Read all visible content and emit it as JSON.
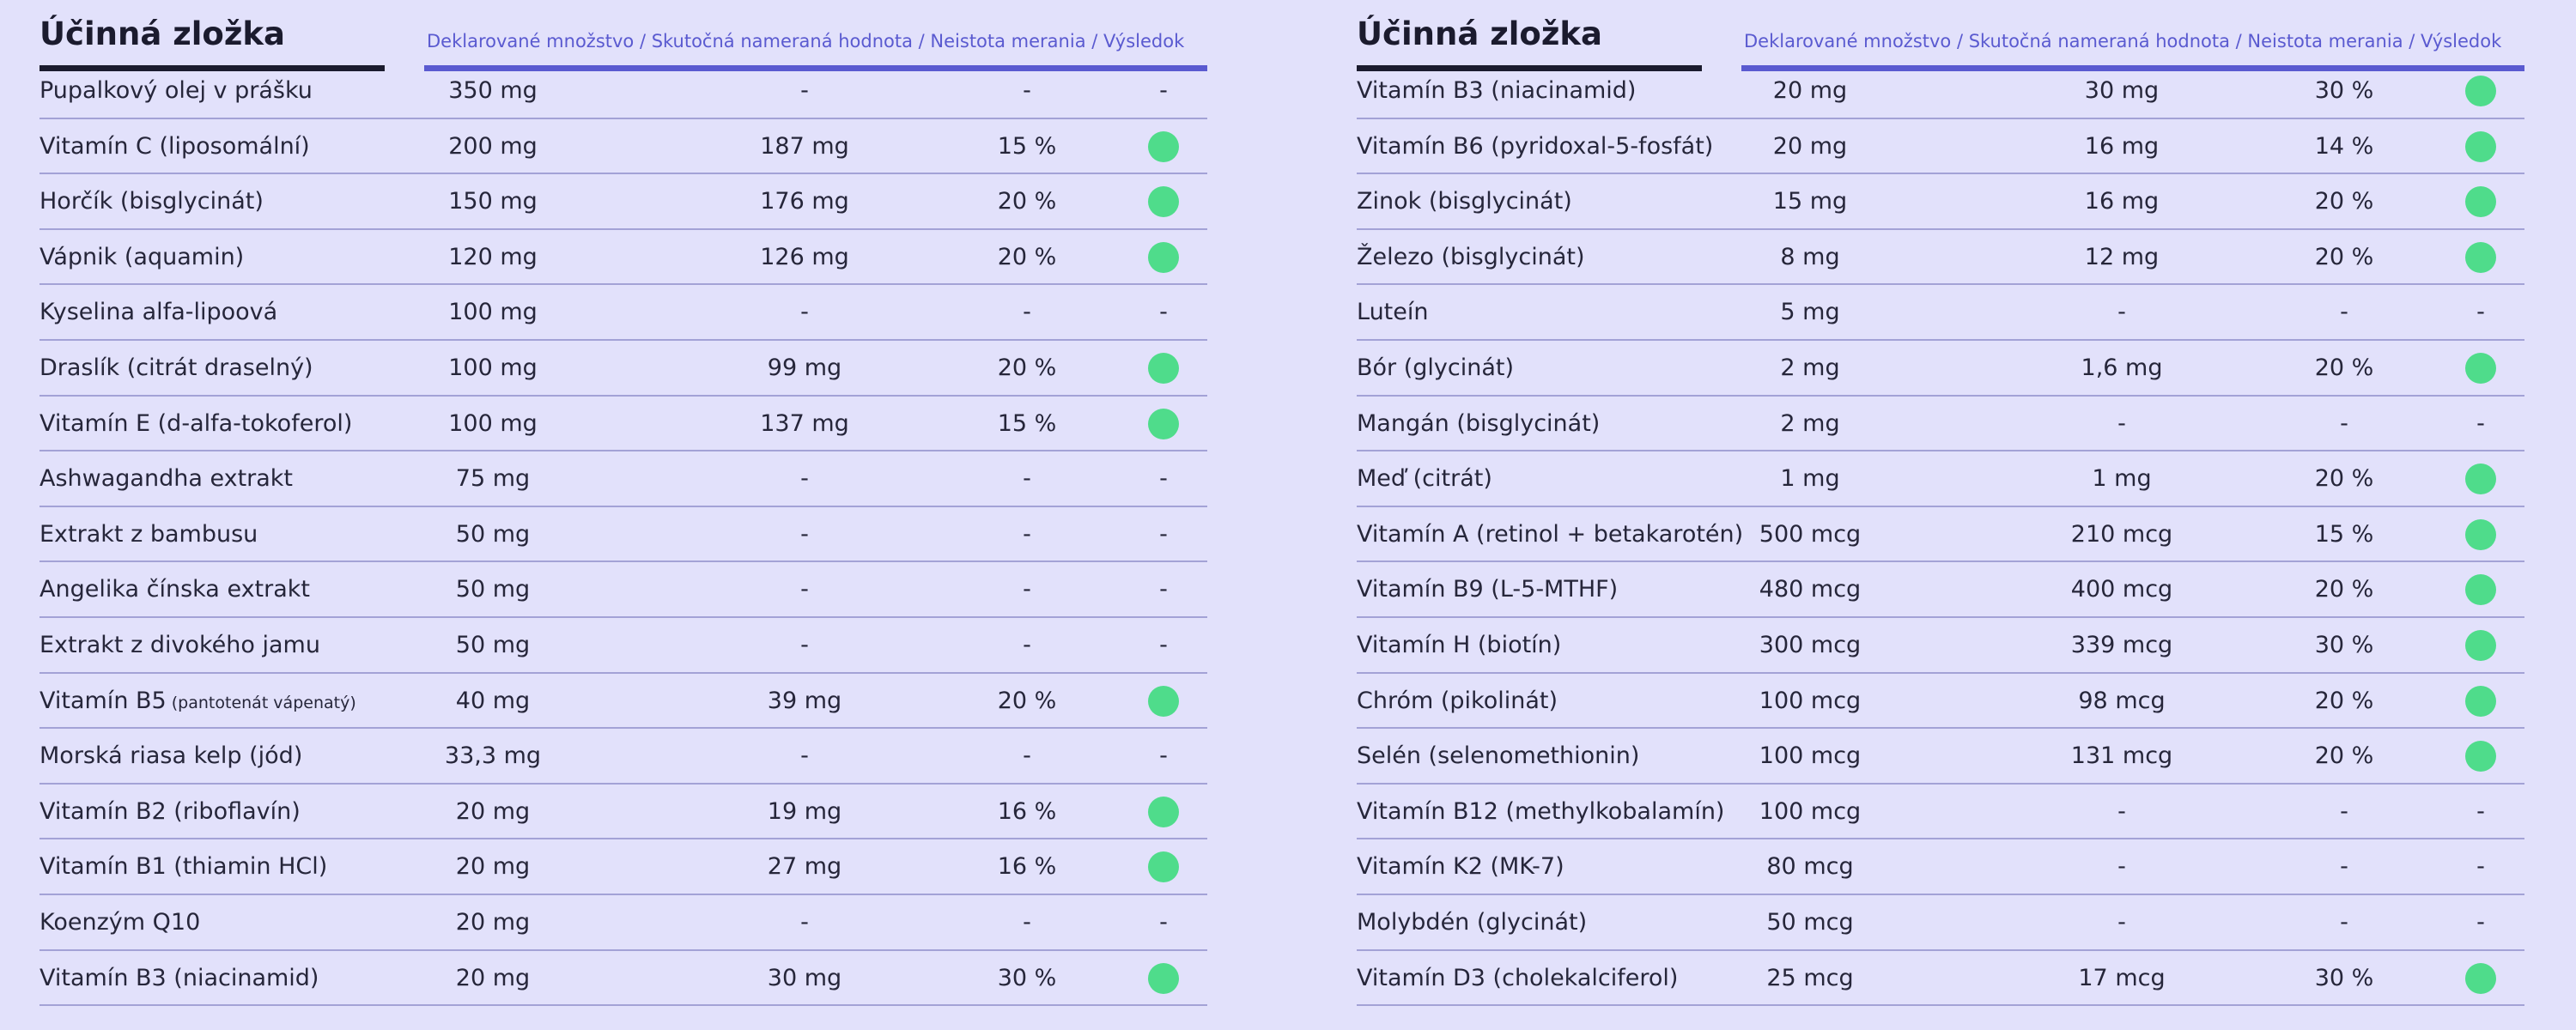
{
  "tables": [
    {
      "title": "Účinná zložka",
      "header": "Deklarované množstvo / Skutočná nameraná hodnota / Neistota merania / Výsledok",
      "rows": [
        {
          "name": "Pupalkový olej v prášku",
          "declared": "350 mg",
          "measured": "-",
          "uncertainty": "-",
          "result": "-"
        },
        {
          "name": "Vitamín C (liposomální)",
          "declared": "200 mg",
          "measured": "187 mg",
          "uncertainty": "15 %",
          "result": true
        },
        {
          "name": "Horčík (bisglycinát)",
          "declared": "150 mg",
          "measured": "176 mg",
          "uncertainty": "20 %",
          "result": true
        },
        {
          "name": "Vápnik (aquamin)",
          "declared": "120 mg",
          "measured": "126 mg",
          "uncertainty": "20 %",
          "result": true
        },
        {
          "name": "Kyselina alfa-lipoová",
          "declared": "100 mg",
          "measured": "-",
          "uncertainty": "-",
          "result": "-"
        },
        {
          "name": "Draslík (citrát draselný)",
          "declared": "100 mg",
          "measured": "99 mg",
          "uncertainty": "20 %",
          "result": true
        },
        {
          "name": "Vitamín E (d-alfa-tokoferol)",
          "declared": "100 mg",
          "measured": "137 mg",
          "uncertainty": "15 %",
          "result": true
        },
        {
          "name": "Ashwagandha extrakt",
          "declared": "75 mg",
          "measured": "-",
          "uncertainty": "-",
          "result": "-"
        },
        {
          "name": "Extrakt z bambusu",
          "declared": "50 mg",
          "measured": "-",
          "uncertainty": "-",
          "result": "-"
        },
        {
          "name": "Angelika čínska extrakt",
          "declared": "50 mg",
          "measured": "-",
          "uncertainty": "-",
          "result": "-"
        },
        {
          "name": "Extrakt z divokého jamu",
          "declared": "50 mg",
          "measured": "-",
          "uncertainty": "-",
          "result": "-"
        },
        {
          "name": "Vitamín B5",
          "note": "(pantotenát vápenatý)",
          "declared": "40 mg",
          "measured": "39 mg",
          "uncertainty": "20 %",
          "result": true
        },
        {
          "name": "Morská riasa kelp (jód)",
          "declared": "33,3 mg",
          "measured": "-",
          "uncertainty": "-",
          "result": "-"
        },
        {
          "name": "Vitamín B2 (riboflavín)",
          "declared": "20 mg",
          "measured": "19 mg",
          "uncertainty": "16 %",
          "result": true
        },
        {
          "name": "Vitamín B1 (thiamin HCl)",
          "declared": "20 mg",
          "measured": "27 mg",
          "uncertainty": "16 %",
          "result": true
        },
        {
          "name": "Koenzým Q10",
          "declared": "20 mg",
          "measured": "-",
          "uncertainty": "-",
          "result": "-"
        },
        {
          "name": "Vitamín B3 (niacinamid)",
          "declared": "20 mg",
          "measured": "30 mg",
          "uncertainty": "30 %",
          "result": true
        }
      ]
    },
    {
      "title": "Účinná zložka",
      "header": "Deklarované množstvo / Skutočná nameraná hodnota / Neistota merania / Výsledok",
      "rows": [
        {
          "name": "Vitamín B3 (niacinamid)",
          "declared": "20 mg",
          "measured": "30 mg",
          "uncertainty": "30 %",
          "result": true
        },
        {
          "name": "Vitamín B6 (pyridoxal-5-fosfát)",
          "declared": "20 mg",
          "measured": "16 mg",
          "uncertainty": "14 %",
          "result": true
        },
        {
          "name": "Zinok (bisglycinát)",
          "declared": "15 mg",
          "measured": "16 mg",
          "uncertainty": "20 %",
          "result": true
        },
        {
          "name": "Železo (bisglycinát)",
          "declared": "8 mg",
          "measured": "12 mg",
          "uncertainty": "20 %",
          "result": true
        },
        {
          "name": "Luteín",
          "declared": "5 mg",
          "measured": "-",
          "uncertainty": "-",
          "result": "-"
        },
        {
          "name": "Bór (glycinát)",
          "declared": "2 mg",
          "measured": "1,6 mg",
          "uncertainty": "20 %",
          "result": true
        },
        {
          "name": "Mangán (bisglycinát)",
          "declared": "2 mg",
          "measured": "-",
          "uncertainty": "-",
          "result": "-"
        },
        {
          "name": "Meď (citrát)",
          "declared": "1 mg",
          "measured": "1 mg",
          "uncertainty": "20 %",
          "result": true
        },
        {
          "name": "Vitamín A (retinol + betakarotén)",
          "declared": "500 mcg",
          "measured": "210 mcg",
          "uncertainty": "15 %",
          "result": true
        },
        {
          "name": "Vitamín B9 (L-5-MTHF)",
          "declared": "480 mcg",
          "measured": "400 mcg",
          "uncertainty": "20 %",
          "result": true
        },
        {
          "name": "Vitamín H (biotín)",
          "declared": "300 mcg",
          "measured": "339 mcg",
          "uncertainty": "30 %",
          "result": true
        },
        {
          "name": "Chróm (pikolinát)",
          "declared": "100 mcg",
          "measured": "98 mcg",
          "uncertainty": "20 %",
          "result": true
        },
        {
          "name": "Selén (selenomethionin)",
          "declared": "100 mcg",
          "measured": "131 mcg",
          "uncertainty": "20 %",
          "result": true
        },
        {
          "name": "Vitamín B12 (methylkobalamín)",
          "declared": "100 mcg",
          "measured": "-",
          "uncertainty": "-",
          "result": "-"
        },
        {
          "name": "Vitamín K2 (MK-7)",
          "declared": "80 mcg",
          "measured": "-",
          "uncertainty": "-",
          "result": "-"
        },
        {
          "name": "Molybdén (glycinát)",
          "declared": "50 mcg",
          "measured": "-",
          "uncertainty": "-",
          "result": "-"
        },
        {
          "name": "Vitamín D3 (cholekalciferol)",
          "declared": "25 mcg",
          "measured": "17 mcg",
          "uncertainty": "30 %",
          "result": true
        }
      ]
    }
  ]
}
